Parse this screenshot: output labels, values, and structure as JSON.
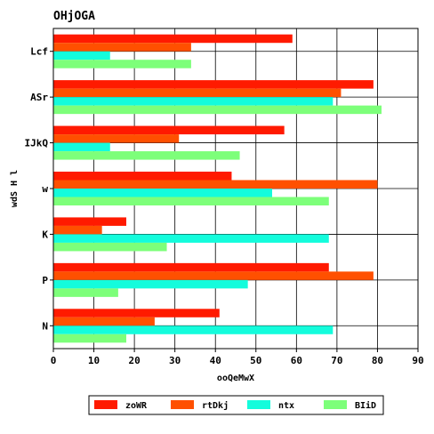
{
  "chart_data": {
    "type": "bar",
    "orientation": "horizontal",
    "title": "OHjOGA",
    "xlabel": "ooQeMwX",
    "ylabel": "wdS H l",
    "xlim": [
      0,
      90
    ],
    "xticks": [
      0,
      10,
      20,
      30,
      40,
      50,
      60,
      70,
      80,
      90
    ],
    "grid": true,
    "legend_position": "bottom",
    "categories": [
      "Lcf",
      "ASr",
      "IJkQ",
      "w",
      "K",
      "P",
      "N"
    ],
    "series": [
      {
        "name": "zoWR",
        "color": "#ff1a00",
        "values": [
          59,
          79,
          57,
          44,
          18,
          68,
          41
        ]
      },
      {
        "name": "rtDkj",
        "color": "#ff5000",
        "values": [
          34,
          71,
          31,
          80,
          12,
          79,
          25
        ]
      },
      {
        "name": "ntx",
        "color": "#14fcdc",
        "values": [
          14,
          69,
          14,
          54,
          68,
          48,
          69
        ]
      },
      {
        "name": "BIiD",
        "color": "#7dff7a",
        "values": [
          34,
          81,
          46,
          68,
          28,
          16,
          18
        ]
      }
    ]
  }
}
